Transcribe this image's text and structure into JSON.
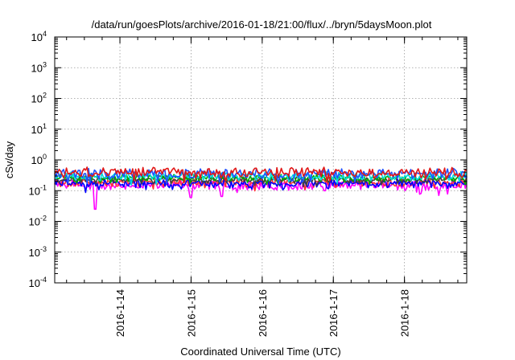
{
  "chart_data": {
    "type": "line",
    "title": "/data/run/goesPlots/archive/2016-01-18/21:00/flux/../bryn/5daysMoon.plot",
    "xlabel": "Coordinated Universal Time (UTC)",
    "ylabel": "cSv/day",
    "x_range": [
      "2016-01-13T02:00",
      "2016-01-18T21:00"
    ],
    "x_ticks": [
      "2016-1-14",
      "2016-1-15",
      "2016-1-16",
      "2016-1-17",
      "2016-1-18"
    ],
    "y_scale": "log",
    "y_range": [
      0.0001,
      10000
    ],
    "y_ticks": [
      {
        "base": "10",
        "exp": "-4"
      },
      {
        "base": "10",
        "exp": "-3"
      },
      {
        "base": "10",
        "exp": "-2"
      },
      {
        "base": "10",
        "exp": "-1"
      },
      {
        "base": "10",
        "exp": "0"
      },
      {
        "base": "10",
        "exp": "1"
      },
      {
        "base": "10",
        "exp": "2"
      },
      {
        "base": "10",
        "exp": "3"
      },
      {
        "base": "10",
        "exp": "4"
      }
    ],
    "grid": true,
    "legend": "none",
    "series": [
      {
        "color": "#ff00ff",
        "level": 0.15,
        "spread": 0.12,
        "dips": [
          {
            "date": "2016-01-13T15:45",
            "value": 0.025
          },
          {
            "date": "2016-01-15T00:05",
            "value": 0.06
          },
          {
            "date": "2016-01-15T10:20",
            "value": 0.065
          },
          {
            "date": "2016-01-16T21:00",
            "value": 0.1
          }
        ]
      },
      {
        "color": "#ff3030",
        "level": 0.19,
        "spread": 0.1,
        "dips": []
      },
      {
        "color": "#0000ff",
        "level": 0.17,
        "spread": 0.1,
        "dips": []
      },
      {
        "color": "#404040",
        "level": 0.23,
        "spread": 0.08,
        "dips": []
      },
      {
        "color": "#00aa00",
        "level": 0.26,
        "spread": 0.08,
        "dips": []
      },
      {
        "color": "#00dddd",
        "level": 0.3,
        "spread": 0.1,
        "dips": []
      },
      {
        "color": "#2050ff",
        "level": 0.36,
        "spread": 0.12,
        "dips": []
      },
      {
        "color": "#e01818",
        "level": 0.4,
        "spread": 0.12,
        "dips": []
      }
    ]
  }
}
